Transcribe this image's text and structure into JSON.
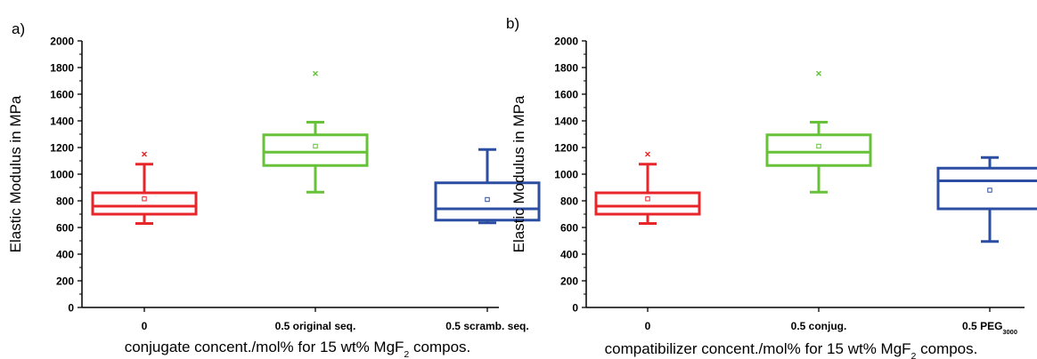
{
  "chart_data": [
    {
      "type": "box",
      "panel_label": "a)",
      "ylabel": "Elastic Modulus in MPa",
      "xlabel": {
        "main": "conjugate concent./mol% for 15 wt% MgF",
        "sub": "2",
        "tail": " compos."
      },
      "ylim": [
        0,
        2000
      ],
      "yticks": [
        0,
        200,
        400,
        600,
        800,
        1000,
        1200,
        1400,
        1600,
        1800,
        2000
      ],
      "grid": false,
      "categories": [
        {
          "main": "0",
          "sub": "",
          "tail": ""
        },
        {
          "main": "0.5 original seq.",
          "sub": "",
          "tail": ""
        },
        {
          "main": "0.5 scramb. seq.",
          "sub": "",
          "tail": ""
        }
      ],
      "boxes": [
        {
          "color": "#e8262a",
          "whisker_low": 630,
          "q1": 700,
          "median": 760,
          "q3": 860,
          "whisker_high": 1075,
          "mean": 815,
          "outliers": [
            1150
          ]
        },
        {
          "color": "#67c23a",
          "whisker_low": 865,
          "q1": 1065,
          "median": 1165,
          "q3": 1295,
          "whisker_high": 1390,
          "mean": 1210,
          "outliers": [
            1755
          ]
        },
        {
          "color": "#2b4ea2",
          "whisker_low": 635,
          "q1": 655,
          "median": 740,
          "q3": 935,
          "whisker_high": 1185,
          "mean": 810,
          "outliers": []
        }
      ]
    },
    {
      "type": "box",
      "panel_label": "b)",
      "ylabel": "Elastic Modulus in MPa",
      "xlabel": {
        "main": "compatibilizer concent./mol% for 15 wt% MgF",
        "sub": "2",
        "tail": " compos."
      },
      "ylim": [
        0,
        2000
      ],
      "yticks": [
        0,
        200,
        400,
        600,
        800,
        1000,
        1200,
        1400,
        1600,
        1800,
        2000
      ],
      "grid": false,
      "categories": [
        {
          "main": "0",
          "sub": "",
          "tail": ""
        },
        {
          "main": "0.5 conjug.",
          "sub": "",
          "tail": ""
        },
        {
          "main": "0.5 PEG",
          "sub": "3000",
          "tail": ""
        }
      ],
      "boxes": [
        {
          "color": "#e8262a",
          "whisker_low": 630,
          "q1": 700,
          "median": 760,
          "q3": 860,
          "whisker_high": 1075,
          "mean": 815,
          "outliers": [
            1150
          ]
        },
        {
          "color": "#67c23a",
          "whisker_low": 865,
          "q1": 1065,
          "median": 1165,
          "q3": 1295,
          "whisker_high": 1390,
          "mean": 1210,
          "outliers": [
            1755
          ]
        },
        {
          "color": "#2b4ea2",
          "whisker_low": 495,
          "q1": 740,
          "median": 950,
          "q3": 1045,
          "whisker_high": 1125,
          "mean": 880,
          "outliers": []
        }
      ]
    }
  ]
}
